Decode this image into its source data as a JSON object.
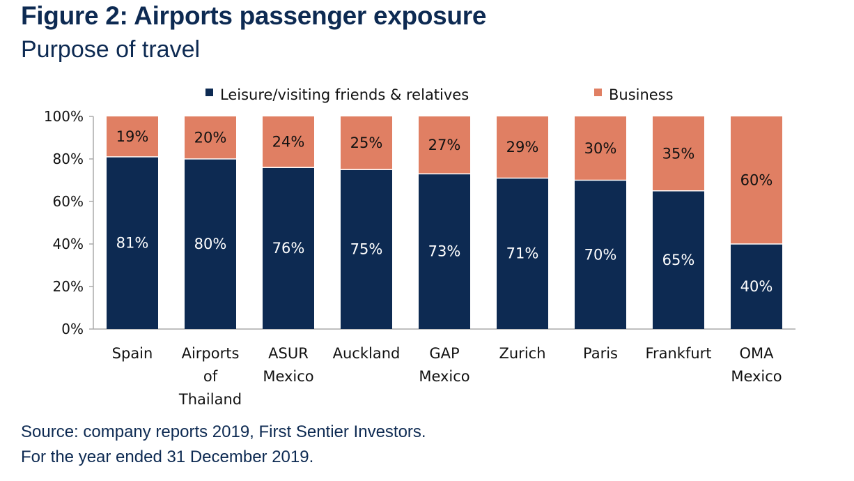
{
  "header": {
    "title": "Figure 2: Airports passenger exposure",
    "subtitle": "Purpose of travel"
  },
  "footnotes": {
    "source": "Source: company reports 2019, First Sentier Investors.",
    "period": "For the year ended 31 December 2019."
  },
  "colors": {
    "leisure": "#0d2a52",
    "business": "#e07f63",
    "axis": "#aaaaaa",
    "text": "#111111"
  },
  "chart_data": {
    "type": "bar",
    "stacked": true,
    "categories": [
      [
        "Spain"
      ],
      [
        "Airports",
        "of",
        "Thailand"
      ],
      [
        "ASUR",
        "Mexico"
      ],
      [
        "Auckland"
      ],
      [
        "GAP",
        "Mexico"
      ],
      [
        "Zurich"
      ],
      [
        "Paris"
      ],
      [
        "Frankfurt"
      ],
      [
        "OMA",
        "Mexico"
      ]
    ],
    "series": [
      {
        "name": "Leisure/visiting friends & relatives",
        "values": [
          81,
          80,
          76,
          75,
          73,
          71,
          70,
          65,
          40
        ]
      },
      {
        "name": "Business",
        "values": [
          19,
          20,
          24,
          25,
          27,
          29,
          30,
          35,
          60
        ]
      }
    ],
    "ylim": [
      0,
      100
    ],
    "yticks": [
      "0%",
      "20%",
      "40%",
      "60%",
      "80%",
      "100%"
    ],
    "legend_position": "top",
    "grid": false,
    "value_suffix": "%"
  }
}
